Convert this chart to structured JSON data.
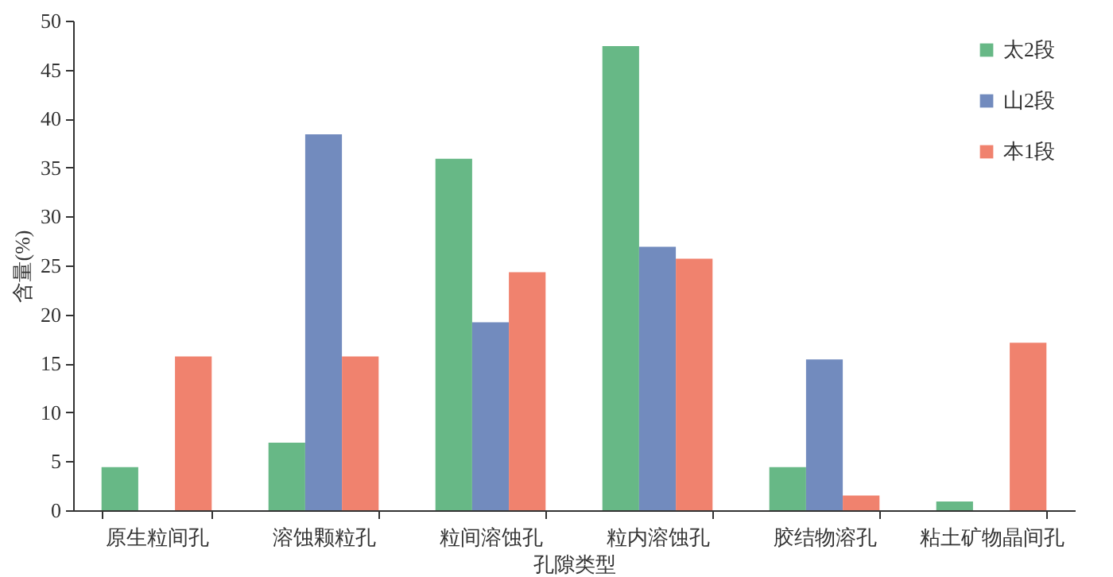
{
  "chart_data": {
    "type": "bar",
    "xlabel": "孔隙类型",
    "ylabel": "含量(%)",
    "categories": [
      "原生粒间孔",
      "溶蚀颗粒孔",
      "粒间溶蚀孔",
      "粒内溶蚀孔",
      "胶结物溶孔",
      "粘土矿物晶间孔"
    ],
    "series": [
      {
        "name": "太2段",
        "color": "#67b886",
        "values": [
          4.4,
          6.9,
          35.9,
          47.4,
          4.4,
          0.9
        ]
      },
      {
        "name": "山2段",
        "color": "#728bbe",
        "values": [
          0,
          38.4,
          19.2,
          26.9,
          15.4,
          0
        ]
      },
      {
        "name": "本1段",
        "color": "#f0826e",
        "values": [
          15.7,
          15.7,
          24.3,
          25.7,
          1.5,
          17.1
        ]
      }
    ],
    "ylim": [
      0,
      50
    ],
    "yticks": [
      0,
      5,
      10,
      15,
      20,
      25,
      30,
      35,
      40,
      45,
      50
    ],
    "grid": false,
    "legend": "top right"
  }
}
